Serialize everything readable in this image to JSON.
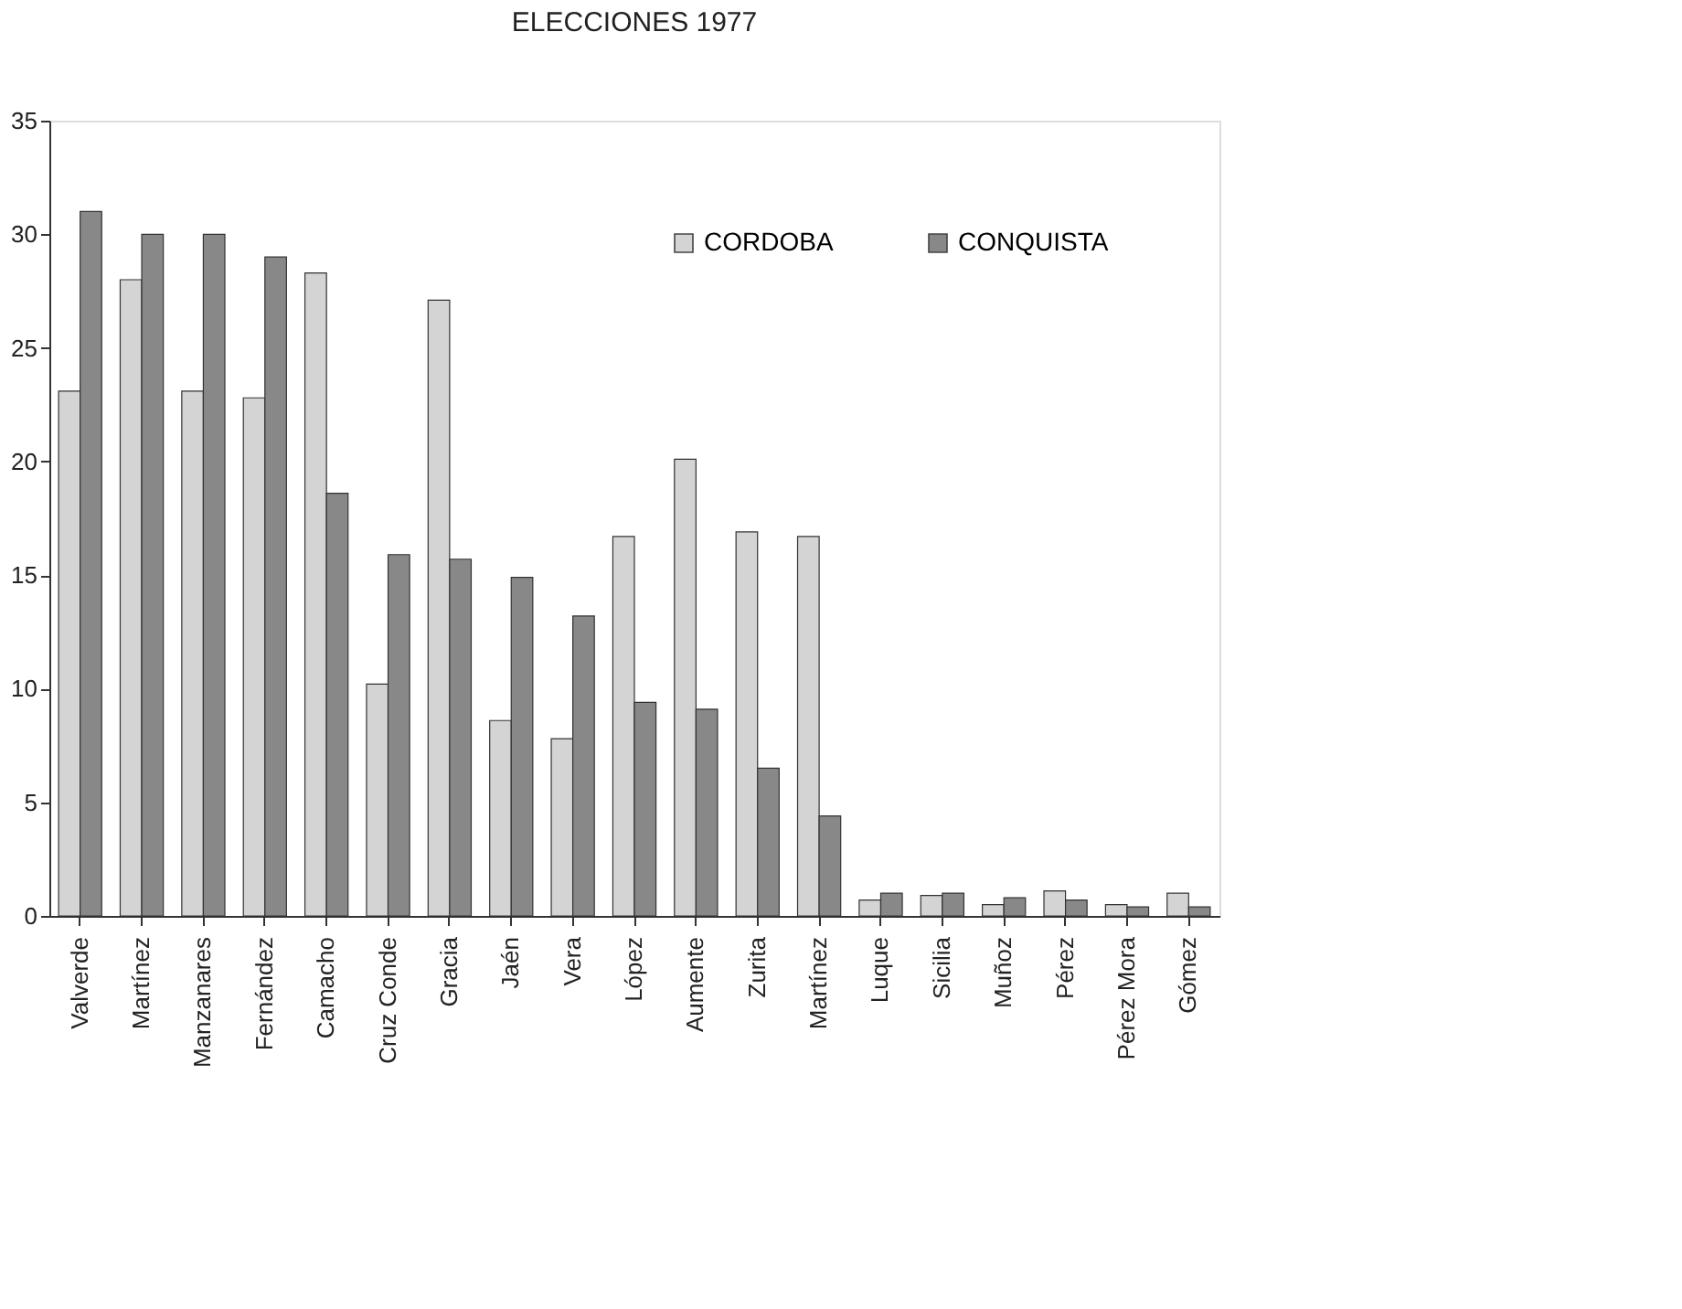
{
  "chart_data": {
    "type": "bar",
    "title": "ELECCIONES 1977",
    "categories": [
      "Valverde",
      "Martínez",
      "Manzanares",
      "Fernández",
      "Camacho",
      "Cruz Conde",
      "Gracia",
      "Jaén",
      "Vera",
      "López",
      "Aumente",
      "Zurita",
      "Martínez",
      "Luque",
      "Sicilia",
      "Muñoz",
      "Pérez",
      "Pérez Mora",
      "Gómez"
    ],
    "series": [
      {
        "name": "CORDOBA",
        "color": "#d4d4d4",
        "values": [
          23.1,
          28,
          23.1,
          22.8,
          28.3,
          10.2,
          27.1,
          8.6,
          7.8,
          16.7,
          20.1,
          16.9,
          16.7,
          0.7,
          0.9,
          0.5,
          1.1,
          0.5,
          1.0
        ]
      },
      {
        "name": "CONQUISTA",
        "color": "#888888",
        "values": [
          31,
          30,
          30,
          29,
          18.6,
          15.9,
          15.7,
          14.9,
          13.2,
          9.4,
          9.1,
          6.5,
          4.4,
          1.0,
          1.0,
          0.8,
          0.7,
          0.4,
          0.4
        ]
      }
    ],
    "ylim": [
      0,
      35
    ],
    "yticks": [
      0,
      5,
      10,
      15,
      20,
      25,
      30,
      35
    ],
    "grid": false,
    "legend": "top right"
  }
}
